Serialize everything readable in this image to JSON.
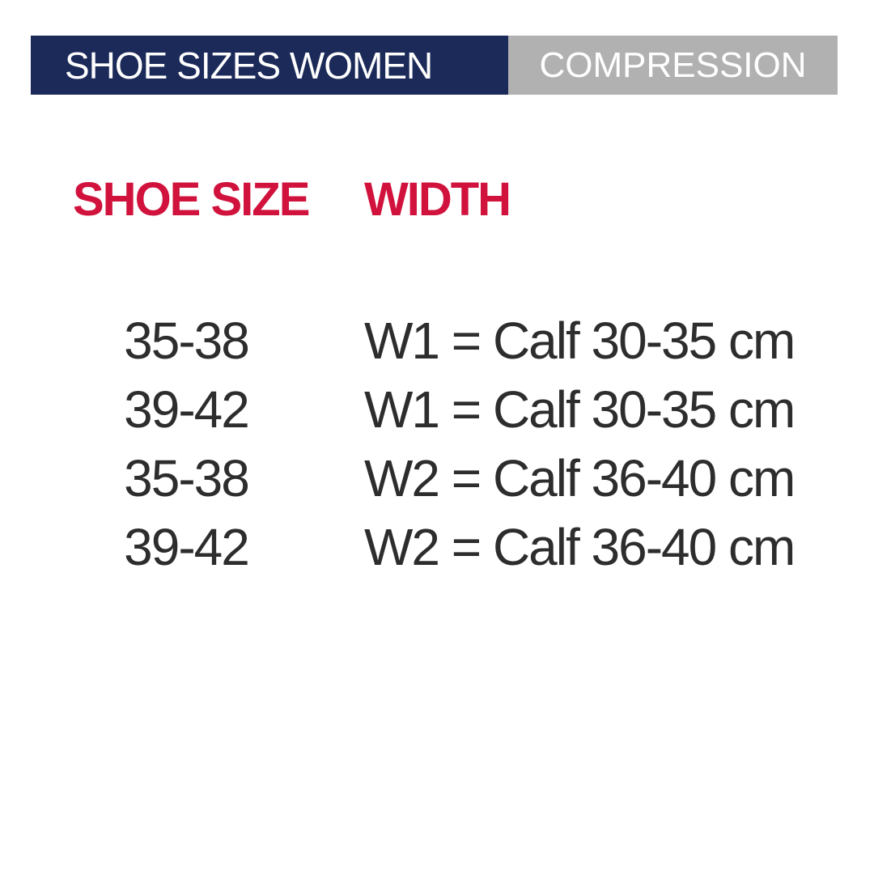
{
  "page": {
    "background_color": "#ffffff"
  },
  "header": {
    "left_tab": {
      "label": "SHOE SIZES WOMEN",
      "background_color": "#1b2a58",
      "text_color": "#ffffff"
    },
    "right_tab": {
      "label": "COMPRESSION",
      "background_color": "#b2b1b1",
      "text_color": "#ffffff"
    }
  },
  "table": {
    "header_color": "#d0123c",
    "body_text_color": "#2d2d2d",
    "columns": [
      "SHOE SIZE",
      "WIDTH"
    ],
    "rows": [
      {
        "shoe_size": "35-38",
        "width": "W1 = Calf 30-35 cm"
      },
      {
        "shoe_size": "39-42",
        "width": "W1 = Calf 30-35 cm"
      },
      {
        "shoe_size": "35-38",
        "width": "W2 = Calf 36-40 cm"
      },
      {
        "shoe_size": "39-42",
        "width": "W2 = Calf 36-40 cm"
      }
    ]
  },
  "chart_data": {
    "type": "table",
    "title": "SHOE SIZES WOMEN — COMPRESSION",
    "columns": [
      "SHOE SIZE",
      "WIDTH"
    ],
    "rows": [
      [
        "35-38",
        "W1 = Calf 30-35 cm"
      ],
      [
        "39-42",
        "W1 = Calf 30-35 cm"
      ],
      [
        "35-38",
        "W2 = Calf 36-40 cm"
      ],
      [
        "39-42",
        "W2 = Calf 36-40 cm"
      ]
    ]
  }
}
